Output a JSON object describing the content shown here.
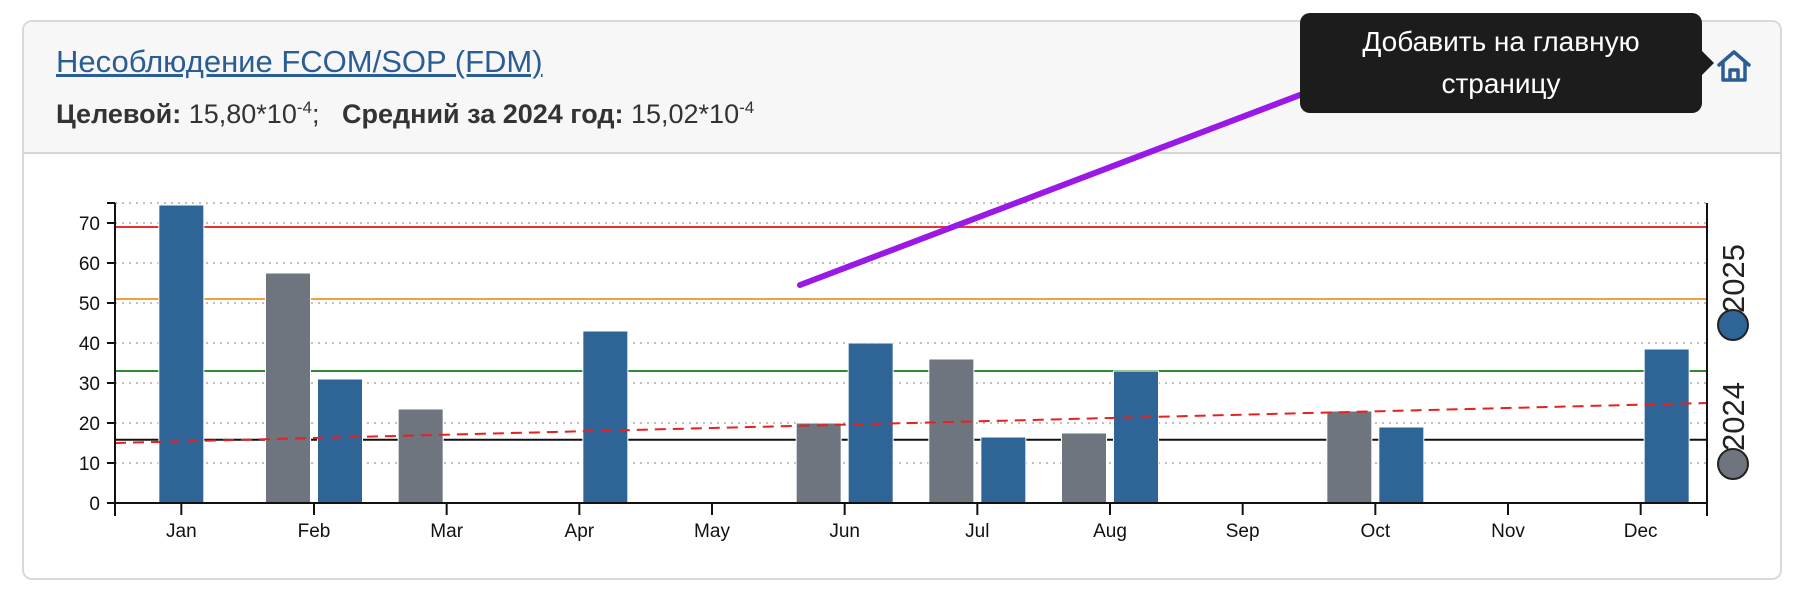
{
  "card": {
    "title": "Несоблюдение FCOM/SOP (FDM)",
    "target_label": "Целевой:",
    "target_value": "15,80*10",
    "target_exp": "-4",
    "target_sep": ";",
    "avg_label": "Средний за 2024 год:",
    "avg_value": "15,02*10",
    "avg_exp": "-4"
  },
  "tooltip": {
    "line1": "Добавить на главную",
    "line2": "страницу"
  },
  "home_button": {
    "icon": "home-icon"
  },
  "colors": {
    "series_2024": "#6e757e",
    "series_2025": "#2f6497",
    "red_line": "#e8322f",
    "orange_line": "#f0a040",
    "green_line": "#2e8b2e",
    "target_line": "#111111",
    "trend_line": "#e82020",
    "arrow": "#9a19e6",
    "link": "#2a5d96"
  },
  "chart_data": {
    "type": "bar",
    "categories": [
      "Jan",
      "Feb",
      "Mar",
      "Apr",
      "May",
      "Jun",
      "Jul",
      "Aug",
      "Sep",
      "Oct",
      "Nov",
      "Dec"
    ],
    "series": [
      {
        "name": "2024",
        "color": "#6e757e",
        "values": [
          null,
          57.5,
          23.5,
          null,
          null,
          20,
          36,
          17.5,
          null,
          23,
          null,
          null
        ]
      },
      {
        "name": "2025",
        "color": "#2f6497",
        "values": [
          74.5,
          31,
          null,
          43,
          null,
          40,
          16.5,
          33,
          null,
          19,
          null,
          38.5
        ]
      }
    ],
    "ylim": [
      0,
      75
    ],
    "yticks": [
      0,
      10,
      20,
      30,
      40,
      50,
      60,
      70
    ],
    "reference_lines": [
      {
        "value": 69,
        "color": "#e8322f",
        "style": "solid"
      },
      {
        "value": 51,
        "color": "#f0a040",
        "style": "solid"
      },
      {
        "value": 33,
        "color": "#2e8b2e",
        "style": "solid"
      },
      {
        "value": 15.8,
        "color": "#111111",
        "style": "solid"
      }
    ],
    "trend_line": {
      "start": 15,
      "end": 25,
      "color": "#e82020",
      "style": "dashed"
    },
    "grid": "horizontal-dotted",
    "legend_position": "right-vertical"
  }
}
